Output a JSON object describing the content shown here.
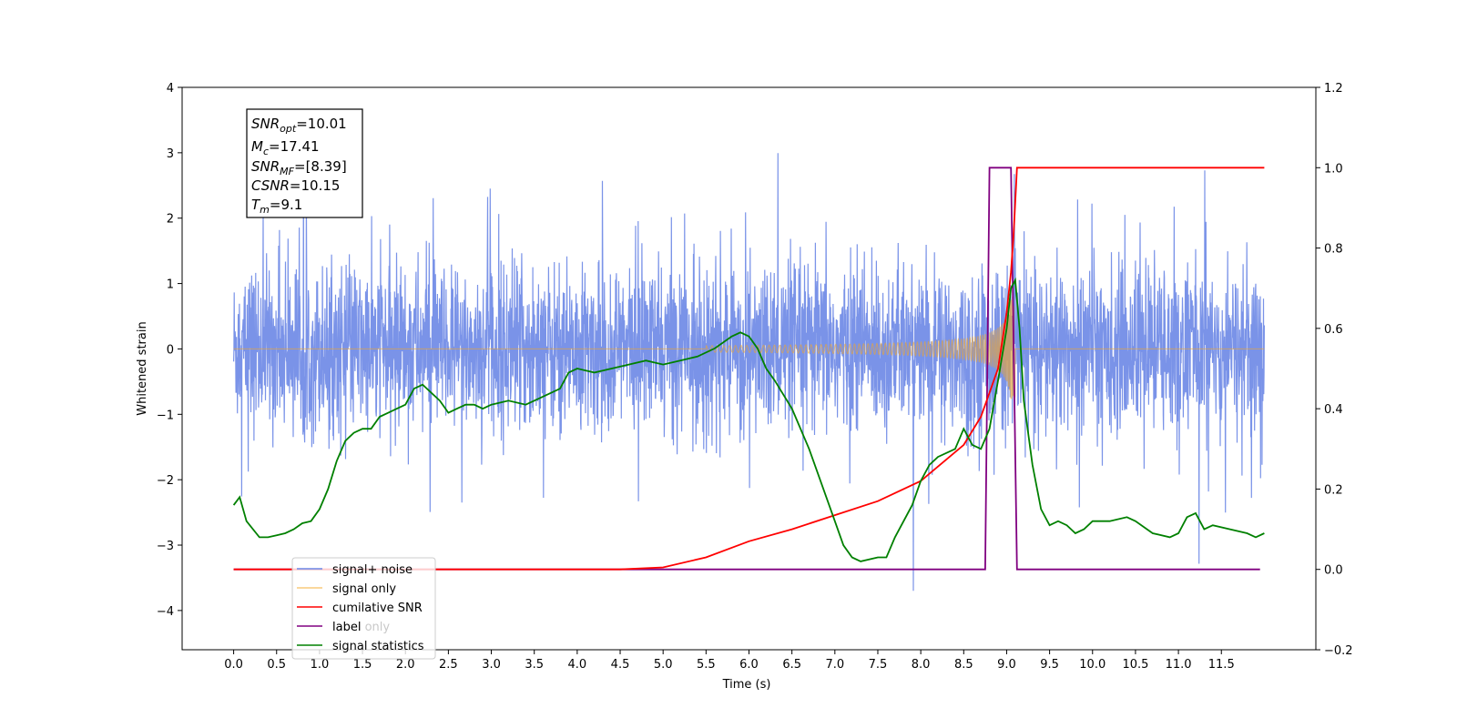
{
  "chart_data": {
    "type": "line",
    "xlabel": "Time (s)",
    "ylabel": "Whitened strain",
    "xlim": [
      -0.6,
      12.6
    ],
    "ylim": [
      -4.6,
      4.0
    ],
    "y2lim": [
      -0.2,
      1.2
    ],
    "x_ticks": [
      "0.0",
      "0.5",
      "1.0",
      "1.5",
      "2.0",
      "2.5",
      "3.0",
      "3.5",
      "4.0",
      "4.5",
      "5.0",
      "5.5",
      "6.0",
      "6.5",
      "7.0",
      "7.5",
      "8.0",
      "8.5",
      "9.0",
      "9.5",
      "10.0",
      "10.5",
      "11.0",
      "11.5"
    ],
    "y_ticks": [
      "4",
      "3",
      "2",
      "1",
      "0",
      "−1",
      "−2",
      "−3",
      "−4"
    ],
    "y2_ticks": [
      "1.2",
      "1.0",
      "0.8",
      "0.6",
      "0.4",
      "0.2",
      "0.0",
      "−0.2"
    ],
    "legend_position": "lower-left",
    "colors": {
      "signal_noise": "#6b87e6",
      "signal_only": "#f5a623",
      "cumulative_snr": "#ff0000",
      "label": "#800080",
      "signal_statistics": "#008000"
    },
    "series": [
      {
        "name": "signal+ noise",
        "axis": "left",
        "description": "whitened strain data, approx. band ±1.3 with spikes up to 3.6 and down to -3.7, 0 to 12 s"
      },
      {
        "name": "signal only",
        "axis": "left",
        "chirp": {
          "t_start": 5.5,
          "t_merger": 9.1,
          "peak_amplitude": 0.8
        }
      },
      {
        "name": "cumilative SNR",
        "axis": "right",
        "points": [
          [
            0,
            0
          ],
          [
            4.5,
            0
          ],
          [
            5.0,
            0.005
          ],
          [
            5.5,
            0.03
          ],
          [
            6.0,
            0.07
          ],
          [
            6.5,
            0.1
          ],
          [
            7.0,
            0.135
          ],
          [
            7.5,
            0.17
          ],
          [
            8.0,
            0.22
          ],
          [
            8.5,
            0.31
          ],
          [
            8.7,
            0.38
          ],
          [
            8.9,
            0.5
          ],
          [
            9.0,
            0.64
          ],
          [
            9.05,
            0.74
          ],
          [
            9.08,
            0.83
          ],
          [
            9.12,
            1.0
          ],
          [
            12.0,
            1.0
          ]
        ]
      },
      {
        "name": "label",
        "axis": "right",
        "points": [
          [
            0,
            0
          ],
          [
            8.75,
            0
          ],
          [
            8.8,
            1.0
          ],
          [
            9.05,
            1.0
          ],
          [
            9.12,
            0
          ],
          [
            11.95,
            0
          ]
        ]
      },
      {
        "name": "signal statistics",
        "axis": "right",
        "points": [
          [
            0,
            0.16
          ],
          [
            0.07,
            0.18
          ],
          [
            0.15,
            0.12
          ],
          [
            0.3,
            0.08
          ],
          [
            0.4,
            0.08
          ],
          [
            0.5,
            0.085
          ],
          [
            0.6,
            0.09
          ],
          [
            0.7,
            0.1
          ],
          [
            0.8,
            0.115
          ],
          [
            0.9,
            0.12
          ],
          [
            1.0,
            0.15
          ],
          [
            1.1,
            0.2
          ],
          [
            1.2,
            0.27
          ],
          [
            1.3,
            0.32
          ],
          [
            1.4,
            0.34
          ],
          [
            1.5,
            0.35
          ],
          [
            1.6,
            0.35
          ],
          [
            1.7,
            0.38
          ],
          [
            1.8,
            0.39
          ],
          [
            1.9,
            0.4
          ],
          [
            2.0,
            0.41
          ],
          [
            2.1,
            0.45
          ],
          [
            2.2,
            0.46
          ],
          [
            2.3,
            0.44
          ],
          [
            2.4,
            0.42
          ],
          [
            2.5,
            0.39
          ],
          [
            2.6,
            0.4
          ],
          [
            2.7,
            0.41
          ],
          [
            2.8,
            0.41
          ],
          [
            2.9,
            0.4
          ],
          [
            3.0,
            0.41
          ],
          [
            3.2,
            0.42
          ],
          [
            3.4,
            0.41
          ],
          [
            3.6,
            0.43
          ],
          [
            3.8,
            0.45
          ],
          [
            3.9,
            0.49
          ],
          [
            4.0,
            0.5
          ],
          [
            4.2,
            0.49
          ],
          [
            4.4,
            0.5
          ],
          [
            4.6,
            0.51
          ],
          [
            4.8,
            0.52
          ],
          [
            5.0,
            0.51
          ],
          [
            5.2,
            0.52
          ],
          [
            5.4,
            0.53
          ],
          [
            5.6,
            0.55
          ],
          [
            5.8,
            0.58
          ],
          [
            5.9,
            0.59
          ],
          [
            6.0,
            0.58
          ],
          [
            6.1,
            0.55
          ],
          [
            6.2,
            0.5
          ],
          [
            6.3,
            0.47
          ],
          [
            6.5,
            0.4
          ],
          [
            6.7,
            0.3
          ],
          [
            6.9,
            0.18
          ],
          [
            7.0,
            0.12
          ],
          [
            7.1,
            0.06
          ],
          [
            7.2,
            0.03
          ],
          [
            7.3,
            0.02
          ],
          [
            7.5,
            0.03
          ],
          [
            7.6,
            0.03
          ],
          [
            7.7,
            0.08
          ],
          [
            7.9,
            0.16
          ],
          [
            8.0,
            0.22
          ],
          [
            8.1,
            0.26
          ],
          [
            8.2,
            0.28
          ],
          [
            8.4,
            0.3
          ],
          [
            8.5,
            0.35
          ],
          [
            8.6,
            0.31
          ],
          [
            8.7,
            0.3
          ],
          [
            8.8,
            0.35
          ],
          [
            8.9,
            0.47
          ],
          [
            9.0,
            0.6
          ],
          [
            9.05,
            0.7
          ],
          [
            9.1,
            0.72
          ],
          [
            9.15,
            0.6
          ],
          [
            9.2,
            0.42
          ],
          [
            9.3,
            0.26
          ],
          [
            9.4,
            0.15
          ],
          [
            9.5,
            0.11
          ],
          [
            9.6,
            0.12
          ],
          [
            9.7,
            0.11
          ],
          [
            9.8,
            0.09
          ],
          [
            9.9,
            0.1
          ],
          [
            10.0,
            0.12
          ],
          [
            10.2,
            0.12
          ],
          [
            10.4,
            0.13
          ],
          [
            10.5,
            0.12
          ],
          [
            10.7,
            0.09
          ],
          [
            10.9,
            0.08
          ],
          [
            11.0,
            0.09
          ],
          [
            11.1,
            0.13
          ],
          [
            11.2,
            0.14
          ],
          [
            11.3,
            0.1
          ],
          [
            11.4,
            0.11
          ],
          [
            11.6,
            0.1
          ],
          [
            11.8,
            0.09
          ],
          [
            11.9,
            0.08
          ],
          [
            12.0,
            0.09
          ]
        ]
      }
    ],
    "legend": [
      "signal+ noise",
      "signal only",
      "cumilative SNR",
      "label",
      "signal statistics"
    ],
    "legend_hidden_entry": "label only",
    "annotations": {
      "snr_opt": "10.01",
      "mc": "17.41",
      "snr_mf": "[8.39]",
      "csnr": "10.15",
      "tm": "9.1"
    }
  }
}
